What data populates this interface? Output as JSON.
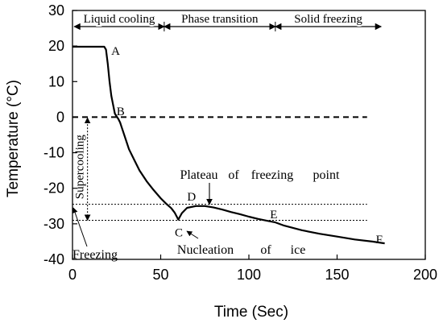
{
  "chart_data": {
    "type": "line",
    "xlabel": "Time (Sec)",
    "ylabel": "Temperature (°C)",
    "xlim": [
      0,
      200
    ],
    "ylim": [
      -40,
      30
    ],
    "xticks": [
      0,
      50,
      100,
      150,
      200
    ],
    "yticks": [
      30,
      20,
      10,
      0,
      -10,
      -20,
      -30,
      -40
    ],
    "grid": false,
    "series": [
      {
        "x": [
          0,
          10,
          18,
          19,
          20,
          21,
          22,
          23,
          24,
          25,
          26,
          27,
          28,
          30,
          32,
          35,
          38,
          42,
          46,
          50,
          53,
          56,
          58,
          60,
          62,
          65,
          70,
          75,
          80,
          85,
          90,
          95,
          100,
          105,
          110,
          115,
          120,
          130,
          140,
          150,
          160,
          170,
          177
        ],
        "y": [
          19.8,
          19.8,
          19.8,
          19.0,
          15.0,
          10.0,
          6.0,
          3.5,
          1.0,
          0.2,
          -0.5,
          -1.5,
          -3.0,
          -6.0,
          -9.0,
          -12.0,
          -15.0,
          -18.0,
          -20.5,
          -22.8,
          -24.3,
          -25.6,
          -26.9,
          -28.8,
          -27.0,
          -25.5,
          -25.0,
          -25.0,
          -25.4,
          -26.0,
          -26.7,
          -27.3,
          -28.0,
          -28.6,
          -29.1,
          -29.6,
          -30.5,
          -31.8,
          -32.8,
          -33.6,
          -34.4,
          -35.0,
          -35.5
        ]
      }
    ],
    "reference_lines": [
      {
        "y": 0,
        "x_from": 0,
        "x_to": 167,
        "style": "dashed"
      },
      {
        "y": -24.5,
        "x_from": 0,
        "x_to": 167,
        "style": "dotted"
      },
      {
        "y": -29,
        "x_from": 0,
        "x_to": 167,
        "style": "dotted"
      }
    ],
    "phase_labels": [
      {
        "text": "Liquid cooling",
        "x_from": 1,
        "x_to": 52
      },
      {
        "text": "Phase transition",
        "x_from": 52,
        "x_to": 115
      },
      {
        "text": "Solid freezing",
        "x_from": 115,
        "x_to": 175
      }
    ],
    "point_labels": [
      {
        "text": "A",
        "x": 22,
        "y": 17.5
      },
      {
        "text": "B",
        "x": 25,
        "y": 0.5
      },
      {
        "text": "D",
        "x": 65,
        "y": -23.5
      },
      {
        "text": "C",
        "x": 58,
        "y": -33.5
      },
      {
        "text": "E",
        "x": 112,
        "y": -28.5
      },
      {
        "text": "F",
        "x": 172,
        "y": -35.5
      }
    ],
    "annotations": {
      "plateau": [
        "Plateau",
        "of",
        "freezing",
        "point"
      ],
      "nucleation": [
        "Nucleation",
        "of",
        "ice"
      ],
      "freezing": "Freezing",
      "supercooling": "Supercooling"
    }
  }
}
